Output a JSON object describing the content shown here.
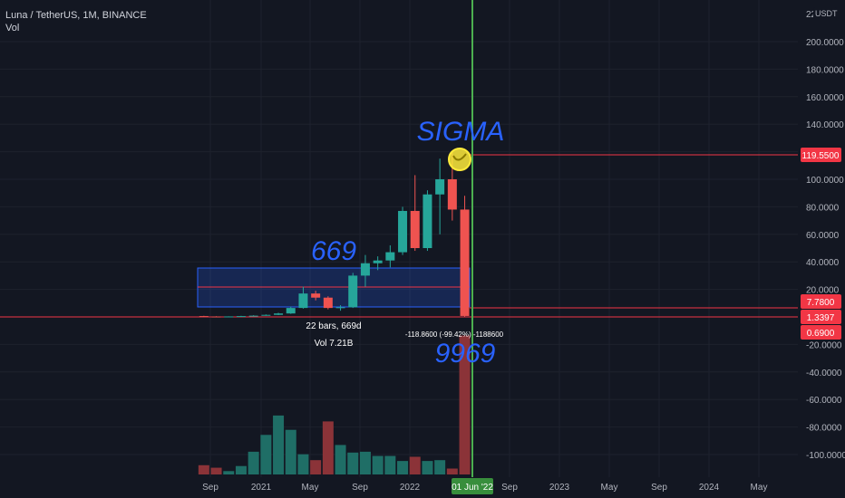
{
  "header": {
    "symbol_line": "Luna / TetherUS, 1M, BINANCE",
    "vol_line": "Vol"
  },
  "price_axis": {
    "unit": "USDT",
    "top_partial": "22",
    "ticks": [
      "200.0000",
      "180.0000",
      "160.0000",
      "140.0000",
      "100.0000",
      "80.0000",
      "60.0000",
      "40.0000",
      "20.0000",
      "-20.0000",
      "-40.0000",
      "-60.0000",
      "-80.0000",
      "-100.0000"
    ]
  },
  "price_tags": [
    {
      "label": "119.5500",
      "color": "#f23645"
    },
    {
      "label": "7.7800",
      "color": "#f23645"
    },
    {
      "label": "1.3397",
      "color": "#f23645"
    },
    {
      "label": "0.6900",
      "color": "#f23645"
    }
  ],
  "time_axis": {
    "ticks": [
      "Sep",
      "2021",
      "May",
      "Sep",
      "2022",
      "Sep",
      "2023",
      "May",
      "Sep",
      "2024",
      "May"
    ],
    "cursor_label": "01 Jun '22"
  },
  "annotations": {
    "sigma": "SIGMA",
    "six_six_nine": "669",
    "nine_nine_six_nine": "9969",
    "range_bars": "22 bars, 669d",
    "range_vol": "Vol 7.21B",
    "drop_measure": "-118.8600 (-99.42%) -1188600"
  },
  "colors": {
    "background": "#131722",
    "up": "#26a69a",
    "down": "#ef5350",
    "up_volume": "#1f6e66",
    "down_volume": "#8b3338",
    "cursor": "#4caf50",
    "hline": "#f23645",
    "range_box": "#2962ff",
    "annotation_text": "#2962ff",
    "highlight": "#ffeb3b"
  },
  "chart_data": {
    "type": "candlestick",
    "timeframe": "1M",
    "ylim": [
      -110,
      225
    ],
    "candles": [
      {
        "o": 0.6,
        "h": 0.8,
        "l": 0.2,
        "c": 0.3
      },
      {
        "o": 0.3,
        "h": 0.5,
        "l": 0.1,
        "c": 0.25
      },
      {
        "o": 0.25,
        "h": 0.4,
        "l": 0.1,
        "c": 0.35
      },
      {
        "o": 0.35,
        "h": 0.8,
        "l": 0.3,
        "c": 0.6
      },
      {
        "o": 0.6,
        "h": 1.2,
        "l": 0.5,
        "c": 0.9
      },
      {
        "o": 0.9,
        "h": 1.8,
        "l": 0.8,
        "c": 1.5
      },
      {
        "o": 1.5,
        "h": 3.0,
        "l": 1.3,
        "c": 2.5
      },
      {
        "o": 2.5,
        "h": 7.5,
        "l": 2.2,
        "c": 6.5
      },
      {
        "o": 6.5,
        "h": 22.0,
        "l": 6.0,
        "c": 17.0
      },
      {
        "o": 17.0,
        "h": 19.0,
        "l": 12.0,
        "c": 14.0
      },
      {
        "o": 14.0,
        "h": 15.0,
        "l": 5.5,
        "c": 6.5
      },
      {
        "o": 6.5,
        "h": 8.5,
        "l": 4.5,
        "c": 7.0
      },
      {
        "o": 7.0,
        "h": 32.0,
        "l": 6.5,
        "c": 30.0
      },
      {
        "o": 30.0,
        "h": 45.0,
        "l": 22.0,
        "c": 39.0
      },
      {
        "o": 39.0,
        "h": 44.0,
        "l": 34.0,
        "c": 41.0
      },
      {
        "o": 41.0,
        "h": 52.0,
        "l": 36.0,
        "c": 47.0
      },
      {
        "o": 47.0,
        "h": 80.0,
        "l": 45.0,
        "c": 77.0
      },
      {
        "o": 77.0,
        "h": 103.0,
        "l": 48.0,
        "c": 50.0
      },
      {
        "o": 50.0,
        "h": 92.0,
        "l": 48.0,
        "c": 89.0
      },
      {
        "o": 89.0,
        "h": 115.0,
        "l": 60.0,
        "c": 100.0
      },
      {
        "o": 100.0,
        "h": 119.55,
        "l": 70.0,
        "c": 78.0
      },
      {
        "o": 78.0,
        "h": 88.0,
        "l": 0.0,
        "c": 0.69
      }
    ],
    "volumes": [
      11,
      8,
      4,
      10,
      27,
      47,
      70,
      53,
      24,
      17,
      63,
      35,
      26,
      27,
      22,
      22,
      16,
      21,
      16,
      17,
      7,
      165
    ]
  }
}
